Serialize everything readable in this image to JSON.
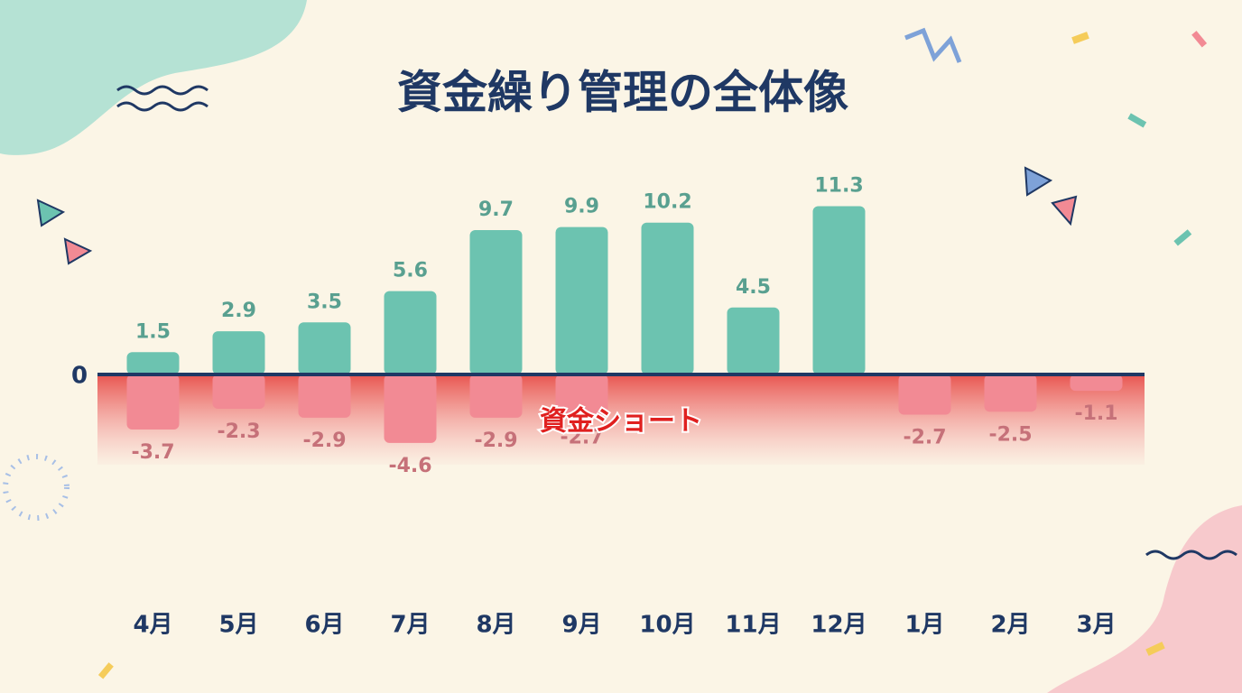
{
  "chart_data": {
    "type": "bar",
    "title": "資金繰り管理の全体像",
    "annotation": "資金ショート",
    "categories": [
      "4月",
      "5月",
      "6月",
      "7月",
      "8月",
      "9月",
      "10月",
      "11月",
      "12月",
      "1月",
      "2月",
      "3月"
    ],
    "series": [
      {
        "color": "#6cc3b0",
        "values": [
          1.5,
          2.9,
          3.5,
          5.6,
          9.7,
          9.9,
          10.2,
          4.5,
          11.3,
          null,
          null,
          null
        ]
      },
      {
        "color": "#f28a94",
        "values": [
          -3.7,
          -2.3,
          -2.9,
          -4.6,
          -2.9,
          -2.7,
          null,
          null,
          null,
          -2.7,
          -2.5,
          -1.1
        ]
      }
    ],
    "ylim": [
      -8,
      12
    ],
    "yticks": [
      0
    ]
  }
}
